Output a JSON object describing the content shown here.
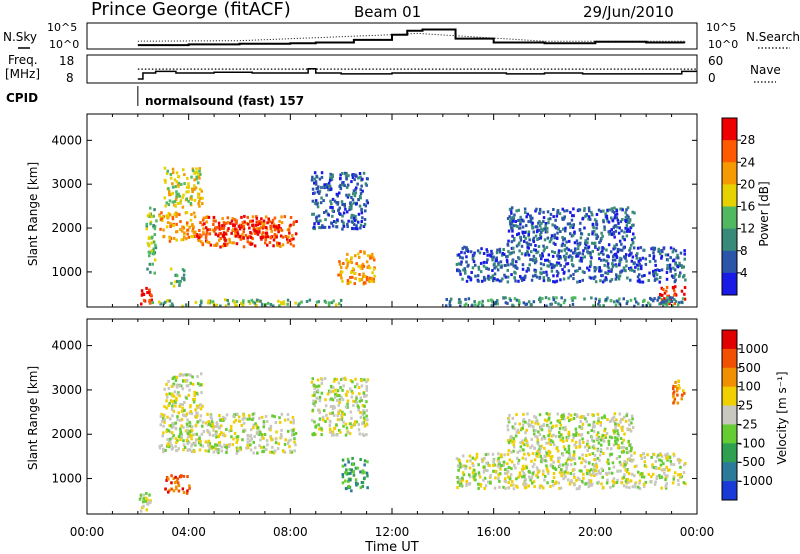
{
  "header": {
    "title": "Prince George (fitACF)",
    "beam": "Beam 01",
    "date": "29/Jun/2010"
  },
  "chart_data": [
    {
      "type": "line",
      "id": "nsky-nsearch",
      "ylabel_left": "N.Sky",
      "ylabel_right": "N.Search",
      "ytick_labels": [
        "10^5",
        "10^0"
      ],
      "series": [
        {
          "name": "N.Sky",
          "style": "solid",
          "x": [
            2.0,
            2.2,
            4.0,
            6.0,
            8.0,
            9.0,
            10.5,
            12.0,
            12.6,
            13.2,
            14.5,
            16.0,
            18.0,
            20.0,
            22.0,
            23.5
          ],
          "y_frac": [
            0.15,
            0.15,
            0.18,
            0.2,
            0.22,
            0.25,
            0.35,
            0.55,
            0.7,
            0.75,
            0.4,
            0.25,
            0.22,
            0.28,
            0.25,
            0.22
          ]
        },
        {
          "name": "N.Search",
          "style": "dotted",
          "x": [
            2.0,
            6.0,
            12.0,
            13.0,
            18.0,
            23.5
          ],
          "y_frac": [
            0.3,
            0.32,
            0.55,
            0.6,
            0.3,
            0.3
          ]
        }
      ]
    },
    {
      "type": "line",
      "id": "freq-nave",
      "ylabel_left": "Freq.",
      "ylabel_left2": "[MHz]",
      "ylabel_right": "Nave",
      "yticks_left": [
        18,
        8
      ],
      "yticks_right": [
        60,
        0
      ],
      "series": [
        {
          "name": "Freq",
          "style": "solid",
          "x": [
            2.0,
            2.2,
            2.7,
            3.5,
            5.0,
            6.5,
            8.0,
            8.7,
            9.0,
            10.0,
            12.0,
            13.5,
            15.0,
            16.5,
            18.0,
            19.5,
            21.0,
            22.5,
            23.4,
            24.0
          ],
          "y_mhz": [
            8,
            11.5,
            12.5,
            11.5,
            12,
            11.5,
            11.5,
            14,
            11.5,
            11,
            11.5,
            11.5,
            11.5,
            11,
            11.5,
            11,
            11,
            11,
            12.5,
            12.5
          ]
        },
        {
          "name": "Nave",
          "style": "dotted",
          "x": [
            2.0,
            24.0
          ],
          "y_nave": [
            42,
            42
          ]
        }
      ]
    },
    {
      "type": "text",
      "id": "cpid",
      "label": "CPID",
      "program": "normalsound (fast) 157",
      "start_hour": 2.0
    },
    {
      "type": "heatmap",
      "id": "power",
      "ylabel": "Slant Range [km]",
      "yticks": [
        1000,
        2000,
        3000,
        4000
      ],
      "ylim": [
        200,
        4600
      ],
      "xlim": [
        0,
        24
      ],
      "colorbar_label": "Power [dB]",
      "colorbar_ticks": [
        "4",
        "8",
        "12",
        "16",
        "20",
        "24",
        "28"
      ],
      "colors": [
        "#1a1ae6",
        "#2a55a8",
        "#3a8a7a",
        "#4fb860",
        "#e6d200",
        "#f59a00",
        "#ff5a00",
        "#ee0000"
      ],
      "regions": [
        {
          "x": [
            2.0,
            2.5
          ],
          "r": [
            250,
            700
          ],
          "level": 7
        },
        {
          "x": [
            2.3,
            2.7
          ],
          "r": [
            1000,
            2500
          ],
          "level": 3
        },
        {
          "x": [
            2.8,
            4.2
          ],
          "r": [
            1700,
            2400
          ],
          "level": 5
        },
        {
          "x": [
            3.0,
            4.5
          ],
          "r": [
            2500,
            3400
          ],
          "level": 4
        },
        {
          "x": [
            4.2,
            8.2
          ],
          "r": [
            1600,
            2300
          ],
          "level": 6
        },
        {
          "x": [
            5.0,
            7.5
          ],
          "r": [
            1800,
            2200
          ],
          "level": 7
        },
        {
          "x": [
            3.2,
            3.8
          ],
          "r": [
            700,
            1100
          ],
          "level": 3
        },
        {
          "x": [
            8.8,
            11.0
          ],
          "r": [
            2000,
            3300
          ],
          "level": 1
        },
        {
          "x": [
            9.8,
            11.3
          ],
          "r": [
            750,
            1500
          ],
          "level": 5
        },
        {
          "x": [
            14.5,
            23.5
          ],
          "r": [
            800,
            1600
          ],
          "level": 1
        },
        {
          "x": [
            16.5,
            21.5
          ],
          "r": [
            1600,
            2500
          ],
          "level": 1
        },
        {
          "x": [
            22.5,
            23.5
          ],
          "r": [
            300,
            700
          ],
          "level": 7
        },
        {
          "x": [
            2.5,
            10.0
          ],
          "r": [
            250,
            400
          ],
          "level": 3
        },
        {
          "x": [
            14.0,
            23.5
          ],
          "r": [
            250,
            450
          ],
          "level": 2
        }
      ]
    },
    {
      "type": "heatmap",
      "id": "velocity",
      "ylabel": "Slant Range [km]",
      "yticks": [
        1000,
        2000,
        3000,
        4000
      ],
      "ylim": [
        200,
        4600
      ],
      "xlim": [
        0,
        24
      ],
      "xticks": [
        "00:00",
        "04:00",
        "08:00",
        "12:00",
        "16:00",
        "20:00",
        "00:00"
      ],
      "xlabel": "Time UT",
      "colorbar_label": "Velocity [m s⁻¹]",
      "colorbar_ticks": [
        "1000",
        "500",
        "100",
        "25",
        "-25",
        "-100",
        "-500",
        "-1000"
      ],
      "colors": [
        "#1a3ad8",
        "#2a7a9a",
        "#2ea050",
        "#66cc33",
        "#c8c8c0",
        "#f0d000",
        "#f09000",
        "#f05000",
        "#e00000"
      ],
      "regions": [
        {
          "x": [
            2.0,
            2.5
          ],
          "r": [
            250,
            700
          ],
          "level": 4
        },
        {
          "x": [
            2.8,
            8.2
          ],
          "r": [
            1600,
            2500
          ],
          "level": 4
        },
        {
          "x": [
            3.0,
            4.5
          ],
          "r": [
            2500,
            3400
          ],
          "level": 4
        },
        {
          "x": [
            3.0,
            4.0
          ],
          "r": [
            700,
            1100
          ],
          "level": 7
        },
        {
          "x": [
            8.8,
            11.0
          ],
          "r": [
            2000,
            3300
          ],
          "level": 4
        },
        {
          "x": [
            10.0,
            11.0
          ],
          "r": [
            750,
            1500
          ],
          "level": 2
        },
        {
          "x": [
            14.5,
            23.5
          ],
          "r": [
            800,
            1600
          ],
          "level": 4
        },
        {
          "x": [
            16.5,
            21.5
          ],
          "r": [
            1600,
            2500
          ],
          "level": 4
        },
        {
          "x": [
            23.0,
            23.5
          ],
          "r": [
            2700,
            3300
          ],
          "level": 6
        }
      ]
    }
  ]
}
